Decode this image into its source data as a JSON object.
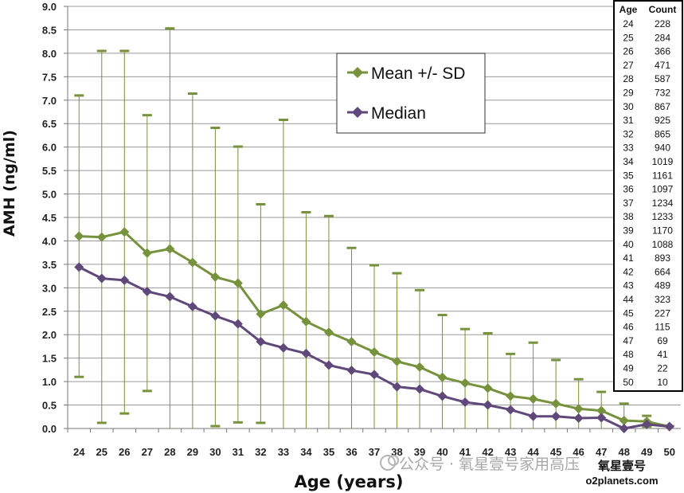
{
  "chart_data": {
    "type": "line",
    "xlabel": "Age (years)",
    "ylabel": "AMH (ng/ml)",
    "ylim": [
      0,
      9
    ],
    "y_ticks": [
      "0.0",
      "0.5",
      "1.0",
      "1.5",
      "2.0",
      "2.5",
      "3.0",
      "3.5",
      "4.0",
      "4.5",
      "5.0",
      "5.5",
      "6.0",
      "6.5",
      "7.0",
      "7.5",
      "8.0",
      "8.5",
      "9.0"
    ],
    "x": [
      24,
      25,
      26,
      27,
      28,
      29,
      30,
      31,
      32,
      33,
      34,
      35,
      36,
      37,
      38,
      39,
      40,
      41,
      42,
      43,
      44,
      45,
      46,
      47,
      48,
      49,
      50
    ],
    "grid": "horizontal",
    "legend_position": "top-center",
    "series": [
      {
        "name": "Mean +/- SD",
        "color": "#76923c",
        "marker": "diamond",
        "values": [
          4.1,
          4.08,
          4.19,
          3.74,
          3.83,
          3.54,
          3.23,
          3.1,
          2.44,
          2.63,
          2.28,
          2.05,
          1.85,
          1.63,
          1.43,
          1.31,
          1.09,
          0.97,
          0.86,
          0.69,
          0.63,
          0.53,
          0.42,
          0.38,
          0.17,
          0.15,
          0.04
        ],
        "sd_upper": [
          7.1,
          8.05,
          8.05,
          6.68,
          8.53,
          7.14,
          6.41,
          6.01,
          4.78,
          6.58,
          4.61,
          4.53,
          3.85,
          3.48,
          3.31,
          2.95,
          2.42,
          2.12,
          2.03,
          1.59,
          1.83,
          1.46,
          1.05,
          0.78,
          0.53,
          0.27,
          0.05
        ],
        "sd_lower": [
          1.1,
          0.12,
          0.32,
          0.8,
          0.0,
          0.0,
          0.05,
          0.13,
          0.12,
          0.0,
          0.0,
          0.0,
          0.0,
          0.0,
          0.0,
          0.0,
          0.0,
          0.0,
          0.0,
          0.0,
          0.0,
          0.0,
          0.0,
          0.0,
          0.0,
          0.04,
          0.0
        ]
      },
      {
        "name": "Median",
        "color": "#60497a",
        "marker": "diamond",
        "values": [
          3.44,
          3.2,
          3.16,
          2.92,
          2.81,
          2.6,
          2.4,
          2.23,
          1.85,
          1.72,
          1.6,
          1.35,
          1.24,
          1.15,
          0.89,
          0.84,
          0.69,
          0.56,
          0.5,
          0.4,
          0.26,
          0.26,
          0.22,
          0.23,
          0.0,
          0.09,
          0.04
        ]
      }
    ],
    "table": {
      "headers": [
        "Age",
        "Count"
      ],
      "rows": [
        [
          "24",
          "228"
        ],
        [
          "25",
          "284"
        ],
        [
          "26",
          "366"
        ],
        [
          "27",
          "471"
        ],
        [
          "28",
          "587"
        ],
        [
          "29",
          "732"
        ],
        [
          "30",
          "867"
        ],
        [
          "31",
          "925"
        ],
        [
          "32",
          "865"
        ],
        [
          "33",
          "940"
        ],
        [
          "34",
          "1019"
        ],
        [
          "35",
          "1161"
        ],
        [
          "36",
          "1097"
        ],
        [
          "37",
          "1234"
        ],
        [
          "38",
          "1233"
        ],
        [
          "39",
          "1170"
        ],
        [
          "40",
          "1088"
        ],
        [
          "41",
          "893"
        ],
        [
          "42",
          "664"
        ],
        [
          "43",
          "489"
        ],
        [
          "44",
          "323"
        ],
        [
          "45",
          "227"
        ],
        [
          "46",
          "115"
        ],
        [
          "47",
          "69"
        ],
        [
          "48",
          "41"
        ],
        [
          "49",
          "22"
        ],
        [
          "50",
          "10"
        ]
      ]
    }
  },
  "watermark": {
    "text": "公众号 · 氧星壹号家用高压氧舱",
    "logo_title": "氧星壹号",
    "logo_url": "o2planets.com"
  }
}
